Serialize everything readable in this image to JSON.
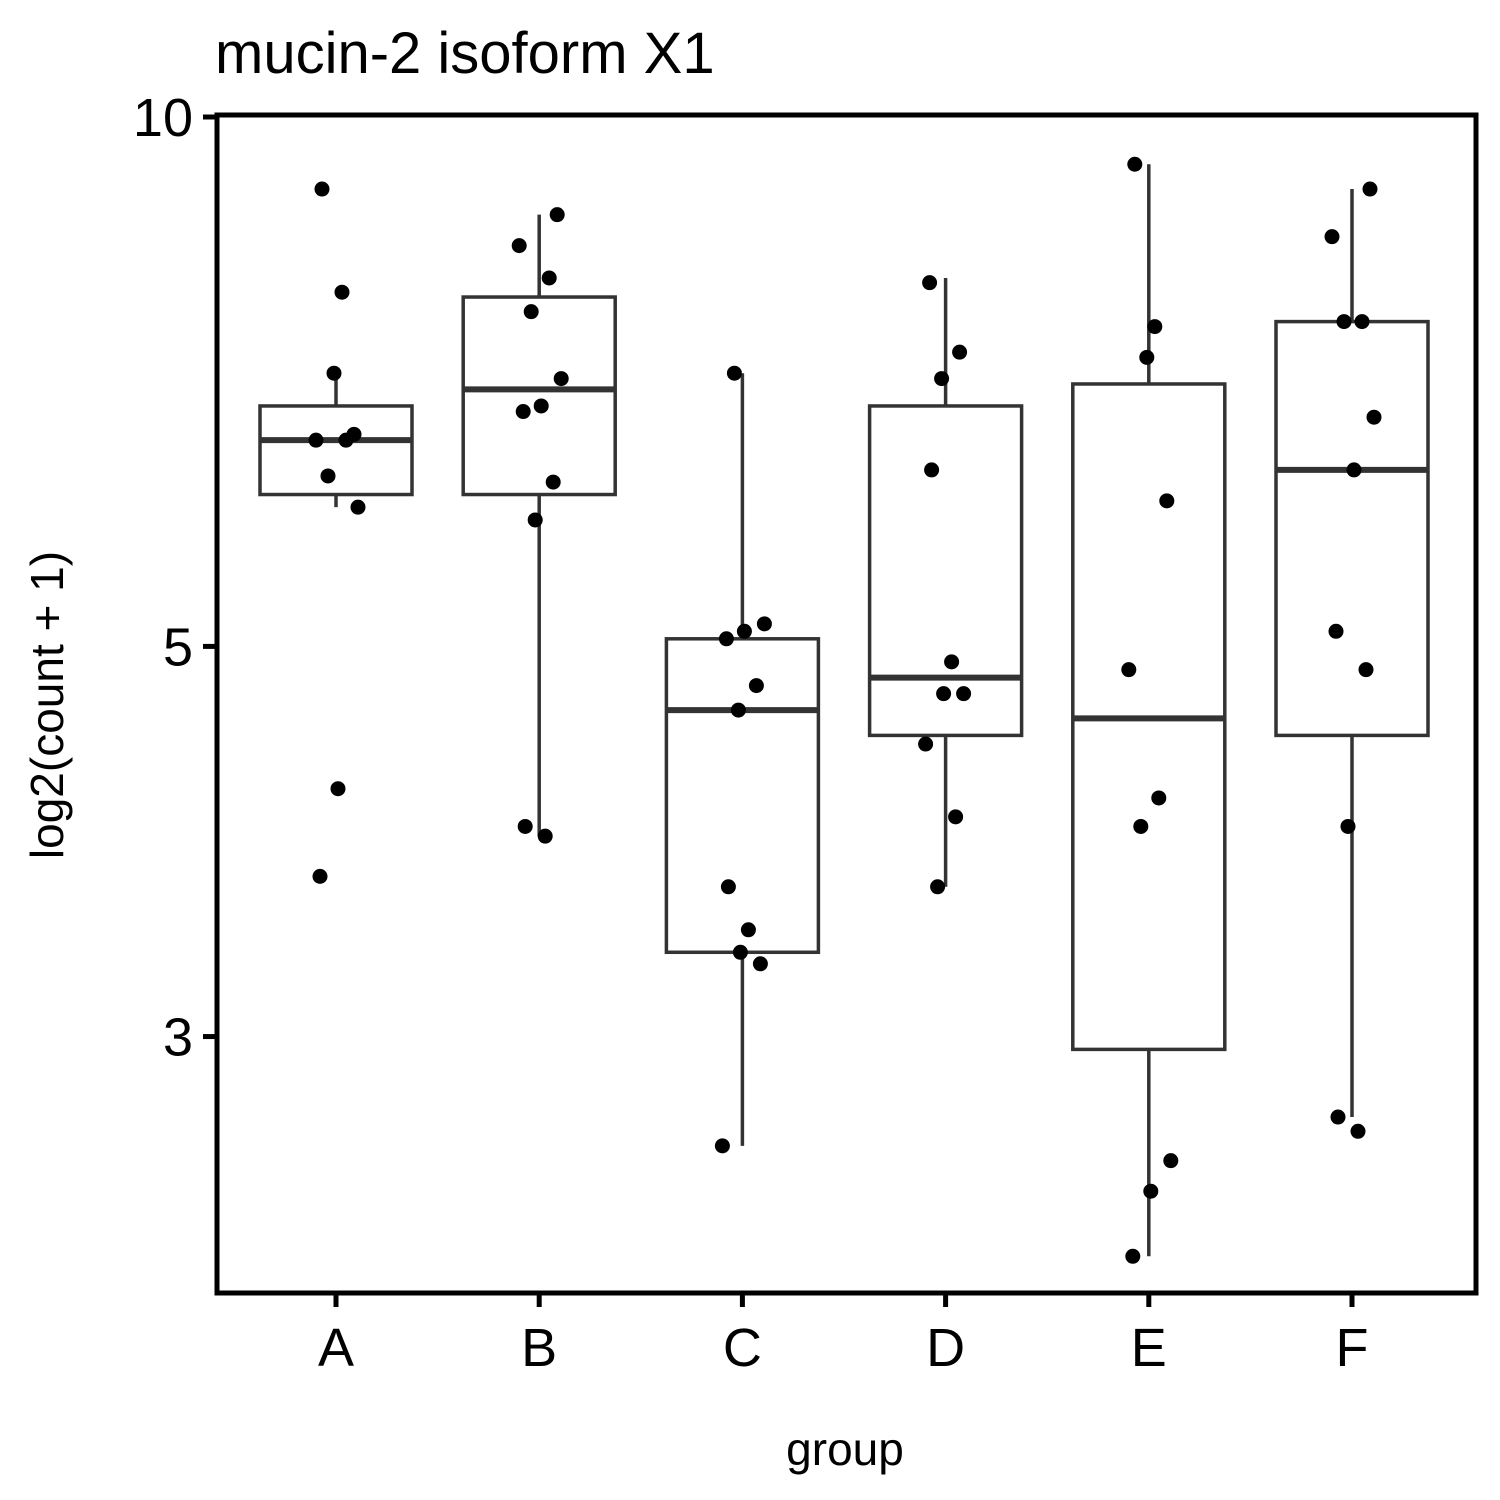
{
  "chart_data": {
    "type": "box",
    "title": "mucin-2 isoform X1",
    "xlabel": "group",
    "ylabel": "log2(count + 1)",
    "y_scale": "log",
    "ylim": [
      2.15,
      10.0
    ],
    "y_ticks": [
      3,
      5,
      10
    ],
    "y_tick_labels": [
      "3",
      "5",
      "10"
    ],
    "categories": [
      "A",
      "B",
      "C",
      "D",
      "E",
      "F"
    ],
    "boxes": [
      {
        "group": "A",
        "lower_whisker": 6.0,
        "q1": 6.1,
        "median": 6.55,
        "q3": 6.85,
        "upper_whisker": 7.15
      },
      {
        "group": "B",
        "lower_whisker": 3.9,
        "q1": 6.1,
        "median": 7.0,
        "q3": 7.9,
        "upper_whisker": 8.8
      },
      {
        "group": "C",
        "lower_whisker": 2.6,
        "q1": 3.35,
        "median": 4.6,
        "q3": 5.05,
        "upper_whisker": 7.15
      },
      {
        "group": "D",
        "lower_whisker": 3.65,
        "q1": 4.45,
        "median": 4.8,
        "q3": 6.85,
        "upper_whisker": 8.1
      },
      {
        "group": "E",
        "lower_whisker": 2.25,
        "q1": 2.95,
        "median": 4.55,
        "q3": 7.05,
        "upper_whisker": 9.4
      },
      {
        "group": "F",
        "lower_whisker": 2.7,
        "q1": 4.45,
        "median": 6.3,
        "q3": 7.65,
        "upper_whisker": 9.1
      }
    ],
    "points": [
      {
        "group": "A",
        "values": [
          9.1,
          7.95,
          7.15,
          6.6,
          6.55,
          6.55,
          6.25,
          6.0,
          4.15,
          3.7
        ]
      },
      {
        "group": "B",
        "values": [
          8.8,
          8.45,
          8.1,
          7.75,
          7.1,
          6.85,
          6.8,
          6.2,
          5.9,
          3.95,
          3.9
        ]
      },
      {
        "group": "C",
        "values": [
          7.15,
          5.15,
          5.1,
          5.05,
          4.75,
          4.6,
          3.65,
          3.45,
          3.35,
          3.3,
          2.6
        ]
      },
      {
        "group": "D",
        "values": [
          8.05,
          7.35,
          7.1,
          6.3,
          4.9,
          4.7,
          4.7,
          4.4,
          4.0,
          3.65
        ]
      },
      {
        "group": "E",
        "values": [
          9.4,
          7.6,
          7.3,
          6.05,
          4.85,
          4.1,
          3.95,
          2.55,
          2.45,
          2.25
        ]
      },
      {
        "group": "F",
        "values": [
          9.1,
          8.55,
          7.65,
          7.65,
          6.75,
          6.3,
          5.1,
          4.85,
          3.95,
          2.7,
          2.65
        ]
      }
    ]
  }
}
